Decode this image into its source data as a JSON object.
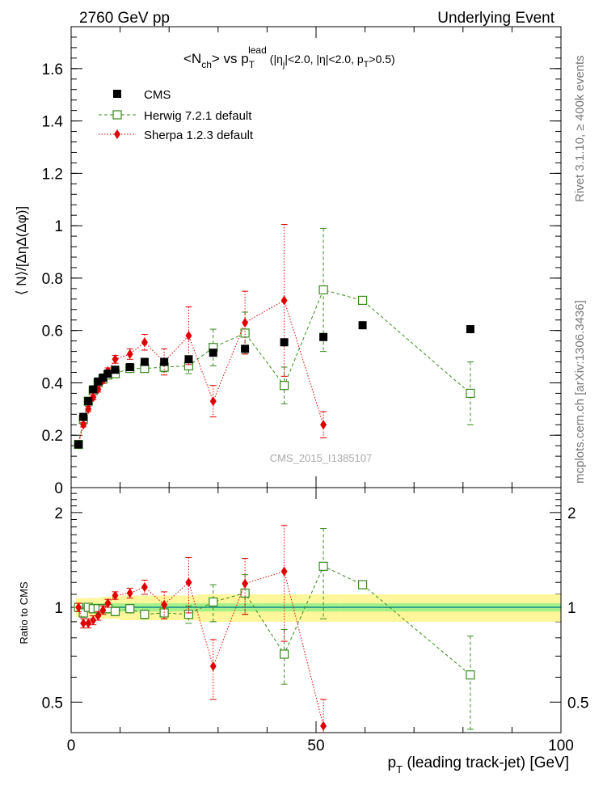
{
  "header": {
    "left": "2760 GeV pp",
    "right": "Underlying Event"
  },
  "side_labels": {
    "rivet": "Rivet 3.1.10, ≥ 400k events",
    "mcplots": "mcplots.cern.ch [arXiv:1306.3436]"
  },
  "plot_title": {
    "main": "<N",
    "main_sub": "ch",
    "main_mid": "> vs p",
    "main_sub2": "T",
    "main_sup2": "lead",
    "cuts": "(|η",
    "cuts_sub": "j",
    "cuts_mid": "|<2.0, |η|<2.0, p",
    "cuts_sub2": "T",
    "cuts_end": ">0.5)"
  },
  "watermark": "CMS_2015_I1385107",
  "colors": {
    "cms": "#000000",
    "herwig": "#3a8a1f",
    "sherpa": "#e00000",
    "band_outer": "#fdf69a",
    "band_inner": "#a6f08a",
    "ratio_line": "#0a8a8a"
  },
  "chart_data": [
    {
      "type": "scatter",
      "title": "<Nch> vs pT lead (|ηj|<2.0, |η|<2.0, pT>0.5)",
      "ylabel": "⟨ N⟩/[ΔηΔ(Δφ)]",
      "xlabel": "",
      "xlim": [
        0,
        100
      ],
      "ylim": [
        0,
        1.76
      ],
      "yticks": [
        0,
        0.2,
        0.4,
        0.6,
        0.8,
        1,
        1.2,
        1.4,
        1.6
      ],
      "ytick_labels": [
        "0",
        "0.2",
        "0.4",
        "0.6",
        "0.8",
        "1",
        "1.2",
        "1.4",
        "1.6"
      ],
      "legend": [
        "CMS",
        "Herwig 7.2.1 default",
        "Sherpa 1.2.3 default"
      ],
      "series": [
        {
          "name": "CMS",
          "marker": "filled-square",
          "x": [
            1.5,
            2.5,
            3.5,
            4.5,
            5.5,
            6.5,
            7.5,
            9.0,
            12.0,
            15.0,
            19.0,
            24.0,
            29.0,
            35.5,
            43.5,
            51.5,
            59.5,
            81.5
          ],
          "y": [
            0.165,
            0.27,
            0.33,
            0.375,
            0.405,
            0.42,
            0.435,
            0.45,
            0.46,
            0.48,
            0.48,
            0.49,
            0.515,
            0.53,
            0.555,
            0.575,
            0.62,
            0.605
          ],
          "yerr": [
            0.005,
            0.005,
            0.005,
            0.005,
            0.005,
            0.005,
            0.005,
            0.005,
            0.005,
            0.005,
            0.006,
            0.007,
            0.008,
            0.01,
            0.012,
            0.014,
            0.015,
            0.015
          ]
        },
        {
          "name": "Herwig 7.2.1 default",
          "marker": "open-square",
          "line": "dashed",
          "x": [
            1.5,
            2.5,
            3.5,
            4.5,
            5.5,
            6.5,
            7.5,
            9.0,
            12.0,
            15.0,
            19.0,
            24.0,
            29.0,
            35.5,
            43.5,
            51.5,
            59.5,
            81.5
          ],
          "y": [
            0.165,
            0.26,
            0.33,
            0.37,
            0.4,
            0.415,
            0.43,
            0.435,
            0.455,
            0.455,
            0.46,
            0.465,
            0.535,
            0.59,
            0.39,
            0.755,
            0.715,
            0.36
          ],
          "yerr": [
            0.005,
            0.005,
            0.006,
            0.006,
            0.007,
            0.008,
            0.008,
            0.01,
            0.012,
            0.014,
            0.018,
            0.03,
            0.07,
            0.08,
            0.07,
            0.235,
            0.01,
            0.12
          ]
        },
        {
          "name": "Sherpa 1.2.3 default",
          "marker": "diamond",
          "line": "dotted",
          "x": [
            1.5,
            2.5,
            3.5,
            4.5,
            5.5,
            6.5,
            7.5,
            9.0,
            12.0,
            15.0,
            19.0,
            24.0,
            29.0,
            35.5,
            43.5,
            51.5
          ],
          "y": [
            0.165,
            0.24,
            0.3,
            0.345,
            0.375,
            0.41,
            0.445,
            0.49,
            0.51,
            0.555,
            0.48,
            0.58,
            0.33,
            0.63,
            0.715,
            0.24
          ],
          "yerr": [
            0.005,
            0.008,
            0.01,
            0.01,
            0.01,
            0.012,
            0.012,
            0.015,
            0.02,
            0.03,
            0.05,
            0.11,
            0.06,
            0.12,
            0.29,
            0.05
          ]
        }
      ]
    },
    {
      "type": "scatter",
      "title": "",
      "ylabel": "Ratio to CMS",
      "xlabel": "pT (leading track-jet) [GeV]",
      "xlim": [
        0,
        100
      ],
      "ylim": [
        0.4,
        2.4
      ],
      "yscale": "log",
      "yticks": [
        0.5,
        1,
        2
      ],
      "ytick_labels": [
        "0.5",
        "1",
        "2"
      ],
      "xticks": [
        0,
        50,
        100
      ],
      "xtick_labels": [
        "0",
        "50",
        "100"
      ],
      "band": {
        "x_edges": [
          1.0,
          2.0,
          3.0,
          4.0,
          5.0,
          6.0,
          7.0,
          8.0,
          10.0,
          14.0,
          16.0,
          22.0,
          26.0,
          32.0,
          39.0,
          48.0,
          55.0,
          64.0,
          100.0
        ],
        "inner": [
          0.03,
          0.03,
          0.03,
          0.03,
          0.03,
          0.03,
          0.03,
          0.03,
          0.03,
          0.03,
          0.03,
          0.03,
          0.03,
          0.03,
          0.03,
          0.03,
          0.03,
          0.03
        ],
        "outer": [
          0.07,
          0.07,
          0.07,
          0.07,
          0.07,
          0.08,
          0.08,
          0.08,
          0.09,
          0.09,
          0.09,
          0.09,
          0.1,
          0.1,
          0.1,
          0.1,
          0.1,
          0.1
        ]
      },
      "series": [
        {
          "name": "Herwig 7.2.1 default",
          "marker": "open-square",
          "line": "dashed",
          "x": [
            1.5,
            2.5,
            3.5,
            4.5,
            5.5,
            6.5,
            7.5,
            9.0,
            12.0,
            15.0,
            19.0,
            24.0,
            29.0,
            35.5,
            43.5,
            51.5,
            59.5,
            81.5
          ],
          "y": [
            1.0,
            0.96,
            1.0,
            0.99,
            0.99,
            0.99,
            0.99,
            0.97,
            0.99,
            0.95,
            0.96,
            0.95,
            1.04,
            1.11,
            0.71,
            1.35,
            1.18,
            0.61
          ],
          "yerr": [
            0.03,
            0.03,
            0.03,
            0.03,
            0.03,
            0.03,
            0.03,
            0.03,
            0.03,
            0.03,
            0.04,
            0.06,
            0.14,
            0.16,
            0.14,
            0.43,
            0.02,
            0.2
          ]
        },
        {
          "name": "Sherpa 1.2.3 default",
          "marker": "diamond",
          "line": "dotted",
          "x": [
            1.5,
            2.5,
            3.5,
            4.5,
            5.5,
            6.5,
            7.5,
            9.0,
            12.0,
            15.0,
            19.0,
            24.0,
            29.0,
            35.5,
            43.5,
            51.5
          ],
          "y": [
            1.0,
            0.89,
            0.89,
            0.91,
            0.94,
            0.98,
            1.03,
            1.09,
            1.11,
            1.16,
            1.02,
            1.2,
            0.65,
            1.19,
            1.3,
            0.42
          ],
          "yerr": [
            0.03,
            0.03,
            0.03,
            0.03,
            0.03,
            0.03,
            0.03,
            0.03,
            0.04,
            0.06,
            0.1,
            0.24,
            0.14,
            0.24,
            0.52,
            0.09
          ]
        }
      ]
    }
  ]
}
